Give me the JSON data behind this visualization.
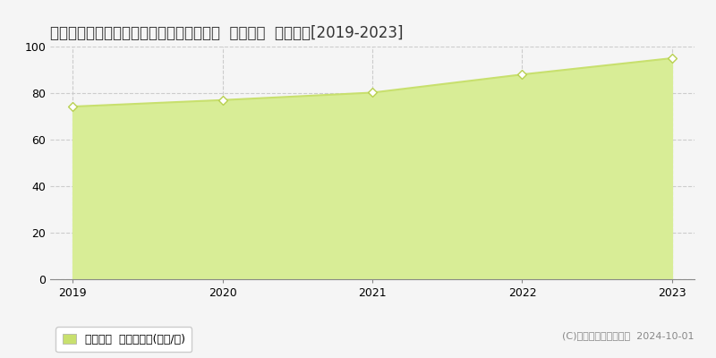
{
  "title": "茨城県つくば市研究学園５丁目１２番４外  基準地価  地価推移[2019-2023]",
  "years": [
    2019,
    2020,
    2021,
    2022,
    2023
  ],
  "values": [
    74.2,
    77.0,
    80.2,
    88.0,
    95.0
  ],
  "ylim": [
    0,
    100
  ],
  "xlim_min": 2018.85,
  "xlim_max": 2023.15,
  "line_color": "#c8e06e",
  "fill_color": "#d8ed96",
  "marker_color": "#ffffff",
  "marker_edge_color": "#b8d050",
  "grid_color": "#cccccc",
  "bg_color": "#f5f5f5",
  "plot_bg_color": "#f5f5f5",
  "legend_label": "基準地価  平均坪単価(万円/坪)",
  "legend_marker_color": "#c8e06e",
  "copyright_text": "(C)土地価格ドットコム  2024-10-01",
  "yticks": [
    0,
    20,
    40,
    60,
    80,
    100
  ],
  "xticks": [
    2019,
    2020,
    2021,
    2022,
    2023
  ],
  "title_fontsize": 12,
  "tick_fontsize": 9,
  "legend_fontsize": 9,
  "copyright_fontsize": 8
}
